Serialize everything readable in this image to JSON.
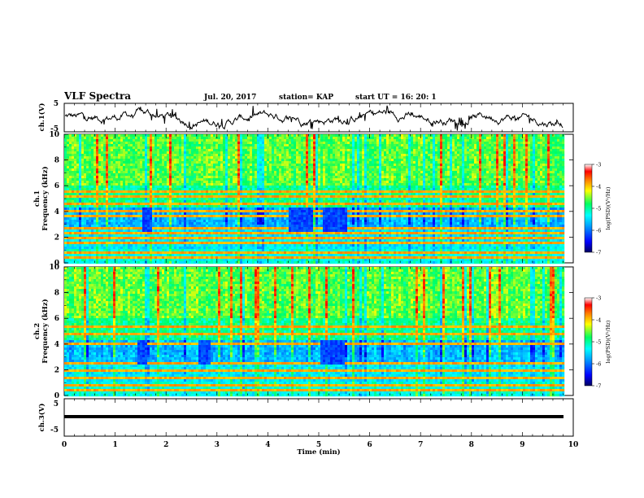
{
  "header": {
    "title": "VLF Spectra",
    "date": "Jul. 20, 2017",
    "station": "station= KAP",
    "start": "start UT =  16: 20: 1"
  },
  "chart_data": [
    {
      "type": "line",
      "panel": "ch1-waveform",
      "ylabel": "ch.1(V)",
      "ylim": [
        -5,
        5
      ],
      "yticks": [
        "5",
        "-5"
      ],
      "xlim": [
        0,
        10
      ],
      "x_end": 9.8,
      "note_series": "dense noisy waveform, mostly between -3 and +3 V"
    },
    {
      "type": "heatmap",
      "panel": "ch1-spectrogram",
      "ylabel_top": "ch.1",
      "ylabel": "Frequency (kHz)",
      "ylim": [
        0,
        10
      ],
      "yticks": [
        "0",
        "2",
        "4",
        "6",
        "8",
        "10"
      ],
      "xlim": [
        0,
        10
      ],
      "colorbar": {
        "label": "log(PSD)(V²/Hz)",
        "range": [
          -7,
          -3
        ],
        "ticks": [
          "-3",
          "-4",
          "-5",
          "-6",
          "-7"
        ]
      },
      "horizontal_lines_khz": [
        0.4,
        0.8,
        1.6,
        2.0,
        2.3,
        2.8,
        3.6,
        4.1,
        4.6,
        5.2,
        5.6
      ],
      "bursts": [
        [
          1.5,
          1.7
        ],
        [
          4.4,
          4.85
        ],
        [
          5.05,
          5.55
        ]
      ]
    },
    {
      "type": "heatmap",
      "panel": "ch2-spectrogram",
      "ylabel_top": "ch.2",
      "ylabel": "Frequency (kHz)",
      "ylim": [
        0,
        10
      ],
      "yticks": [
        "0",
        "2",
        "4",
        "6",
        "8",
        "10"
      ],
      "xlim": [
        0,
        10
      ],
      "colorbar": {
        "label": "log(PSD)(V²/Hz)",
        "range": [
          -7,
          -3
        ],
        "ticks": [
          "-3",
          "-4",
          "-5",
          "-6",
          "-7"
        ]
      },
      "horizontal_lines_khz": [
        0.4,
        0.8,
        1.5,
        1.9,
        2.6,
        3.4,
        4.0,
        4.8,
        5.3
      ],
      "bursts": [
        [
          1.4,
          1.6
        ],
        [
          2.6,
          2.85
        ],
        [
          5.0,
          5.5
        ]
      ]
    },
    {
      "type": "line",
      "panel": "ch3-waveform",
      "ylabel": "ch.3(V)",
      "ylim": [
        -5,
        5
      ],
      "yticks": [
        "5",
        "-5"
      ],
      "xlim": [
        0,
        10
      ],
      "x_end": 9.8,
      "values_constant": 0,
      "note_series": "flat trace at about 0 V"
    }
  ],
  "xaxis": {
    "label": "Time (min)",
    "ticks": [
      "0",
      "1",
      "2",
      "3",
      "4",
      "5",
      "6",
      "7",
      "8",
      "9",
      "10"
    ]
  },
  "colors": {
    "scale": [
      "#000080",
      "#0000ff",
      "#00a0ff",
      "#00ffff",
      "#00ff80",
      "#ffff00",
      "#ff8000",
      "#ff0000",
      "#ffffff"
    ]
  }
}
